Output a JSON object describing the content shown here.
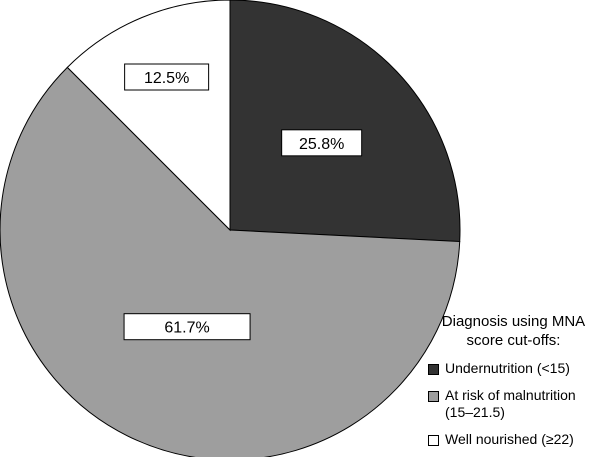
{
  "chart_data": {
    "type": "pie",
    "title": "",
    "start_angle_deg": 0,
    "direction": "clockwise",
    "slices": [
      {
        "name": "Undernutrition (<15)",
        "value": 25.8,
        "label": "25.8%",
        "color": "#333333"
      },
      {
        "name": "At risk of malnutrition\n(15–21.5)",
        "value": 61.7,
        "label": "61.7%",
        "color": "#9e9e9e"
      },
      {
        "name": "Well nourished (≥22)",
        "value": 12.5,
        "label": "12.5%",
        "color": "#ffffff"
      }
    ],
    "legend": {
      "title": "Diagnosis using MNA\nscore cut-offs:",
      "placement": "bottom-right"
    }
  }
}
